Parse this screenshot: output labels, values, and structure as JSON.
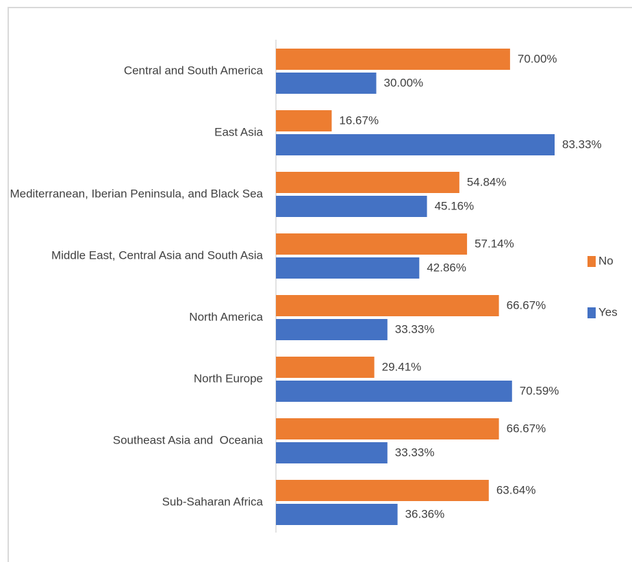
{
  "chart_data": {
    "type": "bar",
    "orientation": "horizontal",
    "categories": [
      "Central and South America",
      "East Asia",
      "Mediterranean, Iberian Peninsula, and Black Sea",
      "Middle East, Central Asia and South Asia",
      "North America",
      "North Europe",
      "Southeast Asia and  Oceania",
      "Sub-Saharan Africa"
    ],
    "series": [
      {
        "name": "No",
        "color": "#ed7d31",
        "values": [
          70,
          16.67,
          54.84,
          57.14,
          66.67,
          29.41,
          66.67,
          63.64
        ],
        "value_labels": [
          "70.00%",
          "16.67%",
          "54.84%",
          "57.14%",
          "66.67%",
          "29.41%",
          "66.67%",
          "63.64%"
        ]
      },
      {
        "name": "Yes",
        "color": "#4472c4",
        "values": [
          30,
          83.33,
          45.16,
          42.86,
          33.33,
          70.59,
          33.33,
          36.36
        ],
        "value_labels": [
          "30.00%",
          "83.33%",
          "45.16%",
          "42.86%",
          "33.33%",
          "70.59%",
          "33.33%",
          "36.36%"
        ]
      }
    ],
    "legend": "right"
  }
}
